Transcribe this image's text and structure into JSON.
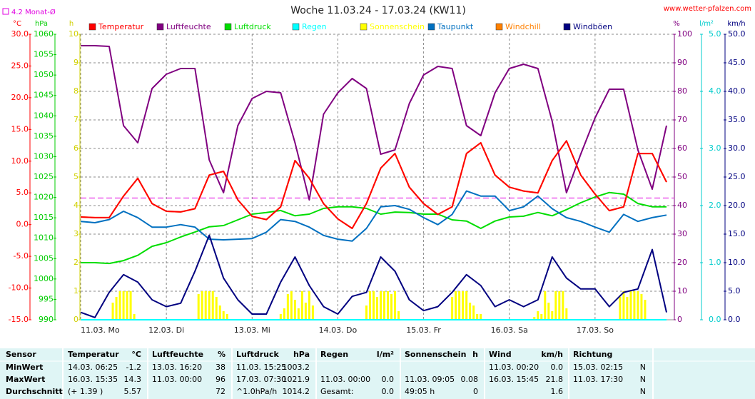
{
  "chart_data": {
    "type": "line",
    "title": "Woche 11.03.24 - 17.03.24 (KW11)",
    "source": "www.wetter-pfalzen.com",
    "annotation": {
      "label": "4.2 Monat-Ø",
      "value": 4.2,
      "color": "#e000e0"
    },
    "xlim": [
      0,
      166
    ],
    "xticks": [
      {
        "value": 0,
        "label": "11.03. Mo"
      },
      {
        "value": 24,
        "label": "12.03. Di"
      },
      {
        "value": 48,
        "label": "13.03. Mi"
      },
      {
        "value": 72,
        "label": "14.03. Do"
      },
      {
        "value": 96,
        "label": "15.03. Fr"
      },
      {
        "value": 120,
        "label": "16.03. Sa"
      },
      {
        "value": 144,
        "label": "17.03. So"
      }
    ],
    "grid": true,
    "axes": [
      {
        "label": "°C",
        "color": "#ff0000",
        "lim": [
          -15,
          30
        ],
        "ticks": [
          {
            "value": -15,
            "label": "-15.0"
          },
          {
            "value": -10,
            "label": "-10.0"
          },
          {
            "value": -5,
            "label": "-5.0"
          },
          {
            "value": 0,
            "label": "0.0"
          },
          {
            "value": 5,
            "label": "5.0"
          },
          {
            "value": 10,
            "label": "10.0"
          },
          {
            "value": 15,
            "label": "15.0"
          },
          {
            "value": 20,
            "label": "20.0"
          },
          {
            "value": 25,
            "label": "25.0"
          },
          {
            "value": 30,
            "label": "30.0"
          }
        ]
      },
      {
        "label": "hPa",
        "color": "#00cc00",
        "lim": [
          990,
          1060
        ],
        "ticks": [
          990,
          995,
          1000,
          1005,
          1010,
          1015,
          1020,
          1025,
          1030,
          1035,
          1040,
          1045,
          1050,
          1055,
          1060
        ]
      },
      {
        "label": "h",
        "color": "#d0d000",
        "lim": [
          0,
          10
        ],
        "ticks": [
          0,
          1,
          2,
          3,
          4,
          5,
          6,
          7,
          8,
          9,
          10
        ]
      },
      {
        "label": "%",
        "color": "#800080",
        "lim": [
          0,
          100
        ],
        "ticks": [
          0,
          10,
          20,
          30,
          40,
          50,
          60,
          70,
          80,
          90,
          100
        ]
      },
      {
        "label": "l/m²",
        "color": "#00cccc",
        "lim": [
          0,
          5
        ],
        "ticks": [
          {
            "value": 0,
            "label": "0.0"
          },
          {
            "value": 1,
            "label": "1.0"
          },
          {
            "value": 2,
            "label": "2.0"
          },
          {
            "value": 3,
            "label": "3.0"
          },
          {
            "value": 4,
            "label": "4.0"
          },
          {
            "value": 5,
            "label": "5.0"
          }
        ]
      },
      {
        "label": "km/h",
        "color": "#000080",
        "lim": [
          0,
          50
        ],
        "ticks": [
          {
            "value": 0,
            "label": "0.0"
          },
          {
            "value": 5,
            "label": "5.0"
          },
          {
            "value": 10,
            "label": "10.0"
          },
          {
            "value": 15,
            "label": "15.0"
          },
          {
            "value": 20,
            "label": "20.0"
          },
          {
            "value": 25,
            "label": "25.0"
          },
          {
            "value": 30,
            "label": "30.0"
          },
          {
            "value": 35,
            "label": "35.0"
          },
          {
            "value": 40,
            "label": "40.0"
          },
          {
            "value": 45,
            "label": "45.0"
          },
          {
            "value": 50,
            "label": "50.0"
          }
        ]
      }
    ],
    "x": [
      0,
      4,
      8,
      12,
      16,
      20,
      24,
      28,
      32,
      36,
      40,
      44,
      48,
      52,
      56,
      60,
      64,
      68,
      72,
      76,
      80,
      84,
      88,
      92,
      96,
      100,
      104,
      108,
      112,
      116,
      120,
      124,
      128,
      132,
      136,
      140,
      144,
      148,
      152,
      156,
      160,
      164
    ],
    "series": [
      {
        "name": "Temperatur",
        "color": "#ff0000",
        "axis": 0,
        "values": [
          1.2,
          1.1,
          1.1,
          4.5,
          7.3,
          3.3,
          2.1,
          2.0,
          2.5,
          7.8,
          8.4,
          3.9,
          1.3,
          0.8,
          2.8,
          10.1,
          7.3,
          3.3,
          0.9,
          -0.6,
          3.3,
          8.9,
          11.2,
          5.9,
          3.3,
          1.6,
          2.8,
          11.2,
          12.9,
          7.8,
          5.9,
          5.3,
          5.0,
          10.1,
          13.2,
          7.8,
          4.8,
          2.2,
          2.8,
          11.2,
          11.2,
          6.7
        ]
      },
      {
        "name": "Luftfeuchte",
        "color": "#800080",
        "axis": 3,
        "values": [
          96,
          96,
          95.75,
          68,
          62,
          81,
          86,
          88,
          88,
          56,
          44.5,
          68,
          77.5,
          80,
          79.5,
          62,
          42,
          72,
          79.5,
          84.5,
          81,
          58,
          59.5,
          75.75,
          85.75,
          88.75,
          88,
          68,
          64.5,
          79.5,
          88,
          89.5,
          88,
          69.5,
          44.5,
          58,
          70.75,
          80.75,
          80.75,
          59.5,
          45.75,
          68
        ]
      },
      {
        "name": "Luftdruck",
        "color": "#00dd00",
        "axis": 1,
        "values": [
          1004,
          1004,
          1003.8,
          1004.5,
          1005.8,
          1008,
          1008.9,
          1010.3,
          1011.5,
          1012.8,
          1013.1,
          1014.5,
          1015.9,
          1016.3,
          1016.8,
          1015.5,
          1015.9,
          1017.3,
          1017.7,
          1017.7,
          1017.3,
          1015.9,
          1016.4,
          1016.3,
          1015.9,
          1015.9,
          1014.5,
          1014.2,
          1012.4,
          1014.2,
          1015.2,
          1015.4,
          1016.3,
          1015.5,
          1017.0,
          1018.7,
          1020.1,
          1021.2,
          1020.8,
          1018.5,
          1017.7,
          1017.7
        ]
      },
      {
        "name": "Regen",
        "color": "#00ffff",
        "axis": 4,
        "values": [
          0,
          0,
          0,
          0,
          0,
          0,
          0,
          0,
          0,
          0,
          0,
          0,
          0,
          0,
          0,
          0,
          0,
          0,
          0,
          0,
          0,
          0,
          0,
          0,
          0,
          0,
          0,
          0,
          0,
          0,
          0,
          0,
          0,
          0,
          0,
          0,
          0,
          0,
          0,
          0,
          0,
          0
        ]
      },
      {
        "name": "Sonnenschein",
        "color": "#ffff00",
        "axis": 2,
        "style": "bar",
        "x": [
          9,
          10,
          11,
          12,
          13,
          14,
          15,
          33,
          34,
          35,
          36,
          37,
          38,
          39,
          40,
          41,
          56,
          57,
          58,
          59,
          60,
          61,
          62,
          63,
          64,
          65,
          80,
          81,
          82,
          83,
          84,
          85,
          86,
          87,
          88,
          89,
          104,
          105,
          106,
          107,
          108,
          109,
          110,
          111,
          112,
          127,
          128,
          129,
          130,
          131,
          132,
          133,
          134,
          135,
          136,
          151,
          152,
          153,
          154,
          155,
          156,
          157,
          158
        ],
        "values": [
          0.6,
          0.8,
          1,
          1,
          1,
          1,
          0.2,
          0.9,
          1,
          1,
          1,
          1,
          0.8,
          0.5,
          0.3,
          0.2,
          0.2,
          0.4,
          0.9,
          1,
          0.7,
          0.4,
          1,
          0.6,
          1,
          0.5,
          0.5,
          1,
          1,
          0.8,
          1,
          1,
          1,
          0.9,
          1,
          0.3,
          0.8,
          1,
          1,
          1,
          1,
          0.6,
          0.5,
          0.2,
          0.2,
          0.1,
          0.3,
          0.2,
          1,
          0.6,
          0.3,
          1,
          1,
          1,
          0.4,
          0.8,
          1,
          0.8,
          1,
          1,
          1,
          0.9,
          0.7
        ]
      },
      {
        "name": "Taupunkt",
        "color": "#0070c0",
        "axis": 0,
        "values": [
          0.5,
          0.3,
          0.8,
          2.1,
          1.1,
          -0.4,
          -0.4,
          0,
          -0.4,
          -2.3,
          -2.4,
          -2.3,
          -2.2,
          -1.2,
          0.8,
          0.5,
          -0.4,
          -1.7,
          -2.3,
          -2.6,
          -0.6,
          2.8,
          3.0,
          2.4,
          1.1,
          0,
          1.6,
          5.3,
          4.5,
          4.5,
          2.2,
          2.8,
          4.5,
          2.5,
          1.1,
          0.5,
          -0.4,
          -1.2,
          1.6,
          0.5,
          1.1,
          1.5
        ]
      },
      {
        "name": "Windchill",
        "color": "#ff8000",
        "axis": 0,
        "values": [
          1.2,
          1.1,
          1.1,
          4.5,
          7.3,
          3.3,
          2.1,
          2.0,
          2.5,
          7.8,
          8.4,
          3.9,
          1.3,
          0.8,
          2.8,
          10.1,
          7.3,
          3.3,
          0.9,
          -0.6,
          3.3,
          8.9,
          11.2,
          5.9,
          3.3,
          1.6,
          2.8,
          11.2,
          12.9,
          7.8,
          5.9,
          5.3,
          5.0,
          10.1,
          13.2,
          7.8,
          4.8,
          2.2,
          2.8,
          11.2,
          11.2,
          6.7
        ]
      },
      {
        "name": "Windböen",
        "color": "#000080",
        "axis": 5,
        "values": [
          1.3,
          0.4,
          4.8,
          7.9,
          6.6,
          3.5,
          2.3,
          2.9,
          8.5,
          14.8,
          7.3,
          3.5,
          1,
          1,
          6.6,
          11,
          6,
          2.3,
          1,
          4.1,
          4.8,
          11,
          8.5,
          3.5,
          1.6,
          2.3,
          4.8,
          7.9,
          6,
          2.3,
          3.5,
          2.3,
          3.5,
          11,
          7.3,
          5.4,
          5.4,
          2.3,
          4.8,
          5.4,
          12.3,
          1.3
        ]
      }
    ]
  },
  "table": {
    "header": [
      "Sensor",
      "Temperatur",
      "°C",
      "Luftfeuchte",
      "%",
      "Luftdruck",
      "hPa",
      "Regen",
      "l/m²",
      "Sonnenschein",
      "h",
      "Wind",
      "km/h",
      "Richtung"
    ],
    "rows": [
      [
        "MinWert",
        "14.03. 06:25",
        "-1.2",
        "13.03. 16:20",
        "38",
        "11.03. 15:25",
        "1003.2",
        null,
        null,
        null,
        null,
        "11.03. 00:20",
        "0.0",
        "15.03. 02:15",
        "N"
      ],
      [
        "MaxWert",
        "16.03. 15:35",
        "14.3",
        "11.03. 00:00",
        "96",
        "17.03. 07:30",
        "1021.9",
        "11.03. 00:00",
        "0.0",
        "11.03. 09:05",
        "0.08",
        "16.03. 15:45",
        "21.8",
        "11.03. 17:30",
        "N"
      ],
      [
        "Durchschnitt",
        "(+ 1.39 )",
        "5.57",
        null,
        "72",
        "^1.0hPa/h",
        "1014.2",
        "Gesamt:",
        "0.0",
        "49:05 h",
        "0",
        null,
        "1.6",
        null,
        "N"
      ]
    ]
  }
}
